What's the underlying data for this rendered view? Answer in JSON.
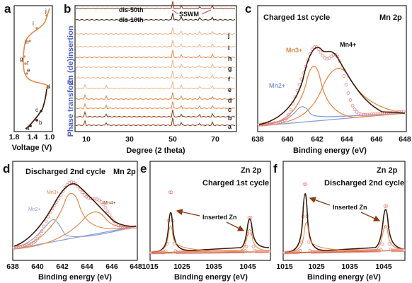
{
  "panels": {
    "a": {
      "label": "a",
      "xlabel": "Voltage (V)",
      "xticks": [
        "1.8",
        "1.4",
        "1.0"
      ],
      "points": [
        "a",
        "b",
        "c",
        "d",
        "e",
        "f",
        "g",
        "h",
        "i",
        "j"
      ]
    },
    "b": {
      "label": "b",
      "xlabel": "Degree (2 theta)",
      "xticks": [
        "10",
        "30",
        "50",
        "70"
      ],
      "ylabel_top": "Zn (de)insertion",
      "ylabel_bottom": "Phase transform",
      "curve_labels": [
        "j",
        "i",
        "h",
        "g",
        "f",
        "e",
        "d",
        "c",
        "b",
        "a"
      ],
      "top_labels": [
        "dis-50th",
        "dis-10th"
      ],
      "annotation": "SSWM"
    },
    "c": {
      "label": "c",
      "state": "Charged  1st cycle",
      "element": "Mn 2p",
      "xlabel": "Binding energy (eV)",
      "xticks": [
        "638",
        "640",
        "642",
        "644",
        "646",
        "648"
      ],
      "peaks": [
        "Mn3+",
        "Mn4+",
        "Mn2+"
      ]
    },
    "d": {
      "label": "d",
      "state": "Discharged  2nd cycle",
      "element": "Mn 2p",
      "xlabel": "Binding energy (eV)",
      "xticks": [
        "638",
        "640",
        "642",
        "644",
        "646",
        "648"
      ],
      "peaks": [
        "Mn3+",
        "Mn4+",
        "Mn2+"
      ]
    },
    "e": {
      "label": "e",
      "element": "Zn 2p",
      "state": "Charged  1st cycle",
      "annotation": "Inserted Zn",
      "xlabel": "Binding energy (eV)",
      "xticks": [
        "1015",
        "1025",
        "1035",
        "1045"
      ]
    },
    "f": {
      "label": "f",
      "element": "Zn 2p",
      "state": "Discharged  2nd cycle",
      "annotation": "Inserted Zn",
      "xlabel": "Binding energy (eV)",
      "xticks": [
        "1015",
        "1025",
        "1035",
        "1045"
      ]
    }
  },
  "colors": {
    "dark": "#3b1a0a",
    "brown": "#8b3a12",
    "orange": "#e8884a",
    "light_orange": "#f3b48a",
    "pink": "#e88a8a",
    "blue": "#8a9fd6",
    "purple": "#b79bd6",
    "text_blue": "#4a5ec4"
  }
}
